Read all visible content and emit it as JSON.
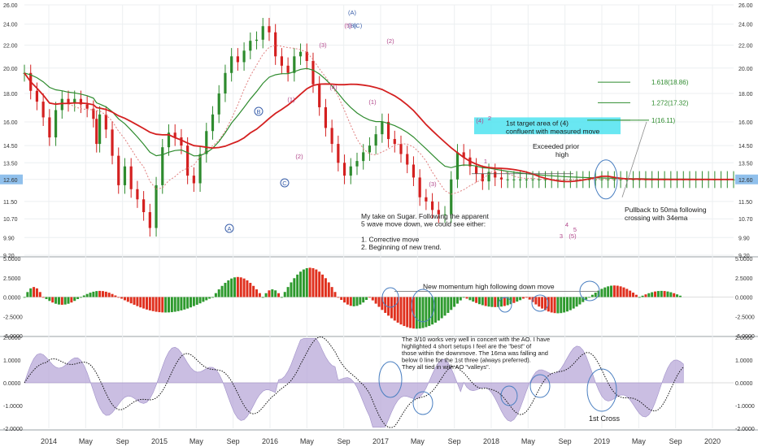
{
  "chart_data": [
    {
      "type": "candlestick",
      "panel": "price",
      "ylim": [
        9.2,
        26.0
      ],
      "y_ticks": [
        "9.20",
        "9.90",
        "10.70",
        "11.50",
        "12.60",
        "13.50",
        "14.50",
        "16.00",
        "18.00",
        "20.00",
        "22.00",
        "24.00",
        "26.00"
      ],
      "price_label": "12.60",
      "x_tick_labels": [
        "2014",
        "May",
        "Sep",
        "2015",
        "May",
        "Sep",
        "2016",
        "May",
        "Sep",
        "2017",
        "May",
        "Sep",
        "2018",
        "May",
        "Sep",
        "2019",
        "May",
        "Sep",
        "2020"
      ],
      "series": [
        {
          "name": "close",
          "x": [
            0,
            2,
            4,
            6,
            8,
            10,
            12,
            14,
            16,
            18,
            20,
            22,
            23,
            24,
            26,
            28,
            30,
            32,
            34,
            36,
            38,
            40,
            42,
            44,
            46,
            48,
            50,
            52,
            54,
            56,
            58,
            60,
            62,
            64,
            66,
            68,
            70,
            72,
            74,
            76,
            78,
            80,
            82,
            84,
            86,
            88,
            90,
            92,
            94,
            96,
            98,
            100,
            102,
            104,
            106,
            108,
            110,
            112,
            114,
            116,
            118,
            120,
            122,
            124,
            126,
            128,
            130,
            132,
            134,
            136,
            138,
            140,
            142,
            144,
            146,
            148,
            150,
            152,
            154,
            156,
            158,
            160,
            162,
            164,
            166,
            168,
            170,
            172,
            174,
            176,
            178,
            180,
            182,
            184,
            186,
            188,
            190,
            192,
            194,
            196,
            198,
            200,
            202,
            204,
            206,
            208,
            210,
            212,
            214,
            216,
            218,
            220,
            222,
            224,
            226
          ],
          "y": [
            19.6,
            18.2,
            17.4,
            16.3,
            15.0,
            16.8,
            17.6,
            17.3,
            17.6,
            17.2,
            16.9,
            16.2,
            14.6,
            16.5,
            15.5,
            13.9,
            12.3,
            13.3,
            12.1,
            11.6,
            11.0,
            10.3,
            12.3,
            14.4,
            15.3,
            15.0,
            14.5,
            12.8,
            12.4,
            14.0,
            15.4,
            16.5,
            18.0,
            19.6,
            21.0,
            20.5,
            21.5,
            22.4,
            22.5,
            23.8,
            23.2,
            21.0,
            20.2,
            19.6,
            21.0,
            21.4,
            20.6,
            18.7,
            17.0,
            15.6,
            14.6,
            13.5,
            12.8,
            13.3,
            13.6,
            14.1,
            14.5,
            15.2,
            16.0,
            14.9,
            14.6,
            14.0,
            13.4,
            12.7,
            11.7,
            11.5,
            11.1,
            10.9,
            10.9,
            12.6,
            14.1,
            13.8,
            13.3,
            12.9,
            12.5,
            13.0,
            12.7,
            12.6,
            12.6,
            12.6,
            12.6,
            12.6,
            12.6,
            12.6,
            12.6,
            12.6,
            12.6,
            12.6,
            12.6,
            12.6,
            12.6,
            12.6,
            12.6,
            12.6,
            12.6,
            12.6,
            12.6,
            12.6,
            12.6,
            12.6,
            12.6,
            12.6,
            12.6,
            12.6,
            12.6,
            12.6,
            12.6,
            12.6,
            12.6,
            12.6,
            12.6,
            12.6,
            12.6,
            12.6,
            12.6
          ]
        },
        {
          "name": "50ma",
          "color": "#d42020"
        },
        {
          "name": "34ema",
          "color": "#2e8b2e"
        },
        {
          "name": "16ma",
          "color": "#d42020"
        }
      ],
      "fib_levels": [
        {
          "label": "1.618(18.86)",
          "value": 18.86
        },
        {
          "label": "1.272(17.32)",
          "value": 17.32
        },
        {
          "label": "1(16.11)",
          "value": 16.11
        }
      ],
      "wave_labels": [
        "A",
        "B",
        "C",
        "(A)",
        "(B)",
        "(C)",
        "(1)",
        "(2)",
        "(3)",
        "(4)",
        "(5)",
        "(1)",
        "(2)",
        "(3)",
        "(4)",
        "(5)",
        "1",
        "2",
        "3",
        "4",
        "5"
      ],
      "annotations": {
        "target_box_text": "1st target area of (4)\nconfluent with measured move",
        "exceeded_text": "Exceeded prior\nhigh",
        "pullback_text": "Pullback to 50ma following\ncrossing with 34ema",
        "take_text": "My take on Sugar. Following the apparent\n5 wave move down, we could see either:\n\n1. Corrective move\n2. Beginning of new trend."
      }
    },
    {
      "type": "bar",
      "panel": "awesome_oscillator",
      "ylim": [
        -5.0,
        5.0
      ],
      "y_ticks": [
        "5.0000",
        "2.5000",
        "0.0000",
        "-2.5000",
        "-5.0000"
      ],
      "annotation": "New momentum high following down move",
      "bars": [
        {
          "from": 0,
          "to": 6,
          "peak": 1.3,
          "dir": "up"
        },
        {
          "from": 6,
          "to": 18,
          "peak": -1.0,
          "dir": "mixed"
        },
        {
          "from": 18,
          "to": 30,
          "peak": 0.8,
          "dir": "up"
        },
        {
          "from": 30,
          "to": 60,
          "peak": -2.0,
          "dir": "down"
        },
        {
          "from": 60,
          "to": 76,
          "peak": 2.6,
          "dir": "up"
        },
        {
          "from": 76,
          "to": 82,
          "peak": 1.0,
          "dir": "mixed"
        },
        {
          "from": 82,
          "to": 100,
          "peak": 3.8,
          "dir": "up"
        },
        {
          "from": 100,
          "to": 110,
          "peak": -1.2,
          "dir": "down"
        },
        {
          "from": 110,
          "to": 140,
          "peak": -4.1,
          "dir": "down"
        },
        {
          "from": 140,
          "to": 160,
          "peak": -1.3,
          "dir": "mixed"
        },
        {
          "from": 160,
          "to": 180,
          "peak": -2.1,
          "dir": "down"
        },
        {
          "from": 180,
          "to": 196,
          "peak": 1.5,
          "dir": "up"
        },
        {
          "from": 196,
          "to": 210,
          "peak": 0.8,
          "dir": "mixed"
        }
      ]
    },
    {
      "type": "area",
      "panel": "3/10_oscillator",
      "ylim": [
        -2.0,
        2.0
      ],
      "y_ticks": [
        "2.0000",
        "1.0000",
        "0.0000",
        "-1.0000",
        "-2.0000"
      ],
      "annotation": "The 3/10 works very well in concert with the AO. I have\nhighlighted 4 short setups I feel are the \"best\" of\nthose within the downmove. The 16ma was falling and\nbelow 0 line for the 1st three (always preferred).\nThey all tied in with AO \"valleys\".",
      "cross_label": "1st Cross"
    }
  ]
}
